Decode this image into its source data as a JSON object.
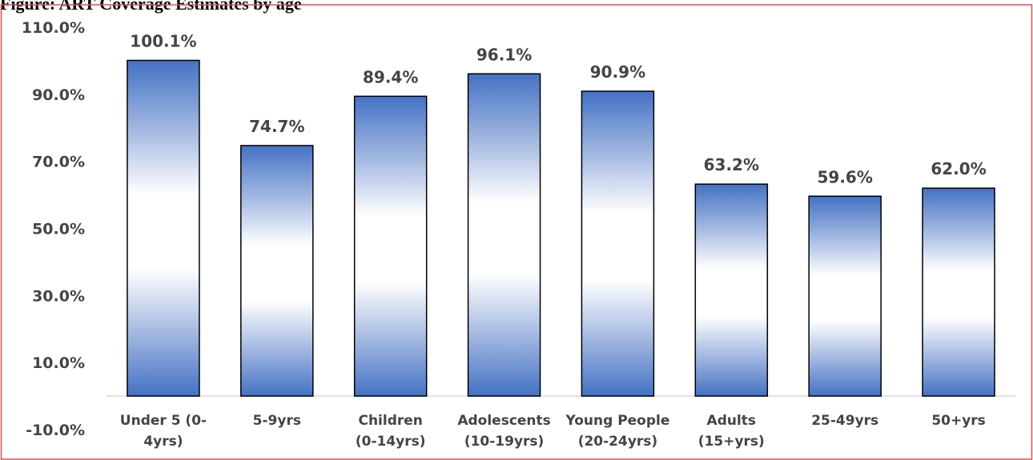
{
  "caption": "Figure: ART Coverage Estimates by age",
  "chart_data": {
    "type": "bar",
    "title": "",
    "xlabel": "",
    "ylabel": "",
    "categories": [
      [
        "Under 5 (0-",
        "4yrs)"
      ],
      [
        "5-9yrs"
      ],
      [
        "Children",
        "(0-14yrs)"
      ],
      [
        "Adolescents",
        "(10-19yrs)"
      ],
      [
        "Young People",
        "(20-24yrs)"
      ],
      [
        "Adults",
        "(15+yrs)"
      ],
      [
        "25-49yrs"
      ],
      [
        "50+yrs"
      ]
    ],
    "values": [
      100.1,
      74.7,
      89.4,
      96.1,
      90.9,
      63.2,
      59.6,
      62.0
    ],
    "data_labels": [
      "100.1%",
      "74.7%",
      "89.4%",
      "96.1%",
      "90.9%",
      "63.2%",
      "59.6%",
      "62.0%"
    ],
    "y_ticks": [
      "110.0%",
      "90.0%",
      "70.0%",
      "50.0%",
      "30.0%",
      "10.0%",
      "-10.0%"
    ],
    "ylim": [
      -10,
      110
    ],
    "grid": false,
    "legend": "none",
    "colors": {
      "bar_dark": "#4472c4",
      "bar_light": "#ffffff",
      "bar_border": "#000000",
      "frame_border": "#e05050",
      "axis_line": "#d9d9d9"
    }
  }
}
